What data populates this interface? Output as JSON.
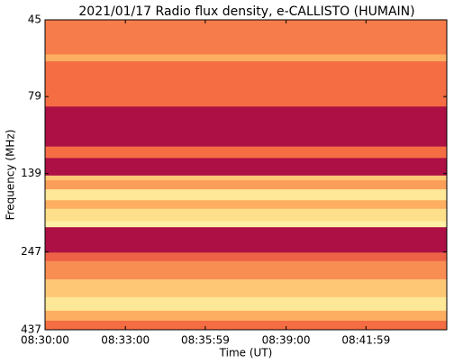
{
  "chart_data": {
    "type": "heatmap",
    "title": "2021/01/17  Radio flux density, e-CALLISTO (HUMAIN)",
    "xlabel": "Time (UT)",
    "ylabel": "Frequency (MHz)",
    "xlim": [
      0,
      900
    ],
    "xticks": [
      {
        "value": 0,
        "label": "08:30:00"
      },
      {
        "value": 180,
        "label": "08:33:00"
      },
      {
        "value": 359,
        "label": "08:35:59"
      },
      {
        "value": 540,
        "label": "08:39:00"
      },
      {
        "value": 719,
        "label": "08:41:59"
      }
    ],
    "ylim": [
      437,
      45
    ],
    "yticks": [
      45,
      79,
      139,
      247,
      437
    ],
    "log_y": true,
    "y_edges": [
      45,
      58,
      61,
      85,
      114,
      124,
      141,
      146,
      156,
      169,
      180,
      197,
      206,
      248,
      264,
      302,
      344,
      380,
      409,
      437
    ],
    "values": [
      0.45,
      0.6,
      0.4,
      0.05,
      0.4,
      0.05,
      0.7,
      0.55,
      0.85,
      0.6,
      0.8,
      0.9,
      0.05,
      0.35,
      0.5,
      0.7,
      0.85,
      0.6,
      0.4
    ],
    "colormap": [
      "#9e0142",
      "#d53e4f",
      "#f46d43",
      "#fdae61",
      "#fee08b",
      "#ffffbf"
    ]
  }
}
